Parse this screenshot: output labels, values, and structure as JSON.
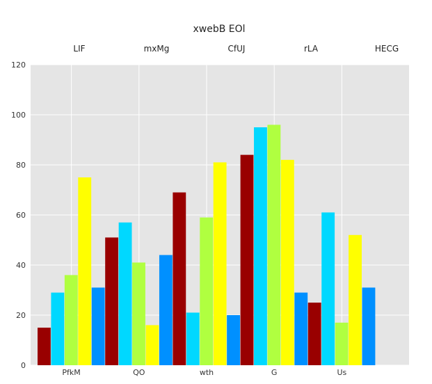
{
  "chart_data": {
    "type": "bar",
    "title": "xwebB EOl",
    "categories": [
      "PfkM",
      "QO",
      "wth",
      "G",
      "Us"
    ],
    "series": [
      {
        "name": "LIF",
        "color": "#990000",
        "values": [
          15,
          51,
          69,
          84,
          25
        ]
      },
      {
        "name": "mxMg",
        "color": "#00d8ff",
        "values": [
          29,
          57,
          21,
          95,
          61
        ]
      },
      {
        "name": "CfUJ",
        "color": "#b0ff40",
        "values": [
          36,
          41,
          59,
          96,
          17
        ]
      },
      {
        "name": "rLA",
        "color": "#ffff00",
        "values": [
          75,
          16,
          81,
          82,
          52
        ]
      },
      {
        "name": "HECG",
        "color": "#0090ff",
        "values": [
          31,
          44,
          20,
          29,
          31
        ]
      }
    ],
    "yticks": [
      0,
      20,
      40,
      60,
      80,
      100,
      120
    ],
    "ylim": [
      0,
      120
    ],
    "legend_position": "top",
    "grid": true,
    "plot_background": "#e5e5e5",
    "grid_color": "#ffffff"
  }
}
